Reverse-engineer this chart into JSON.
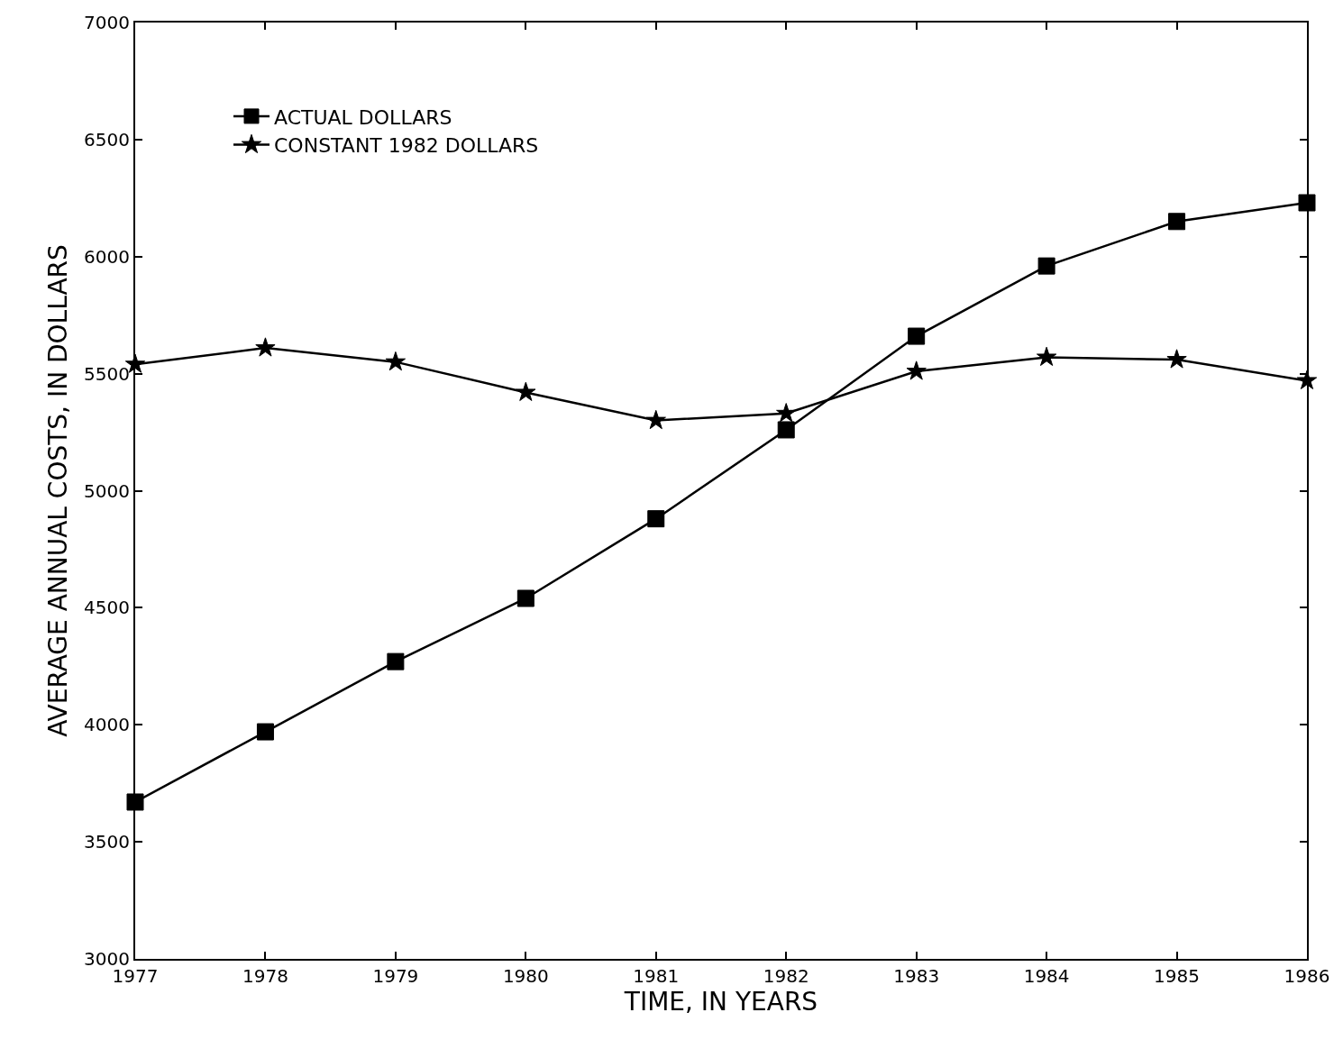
{
  "chart_data": {
    "type": "line",
    "xlabel": "TIME, IN YEARS",
    "ylabel": "AVERAGE ANNUAL COSTS, IN DOLLARS",
    "x": [
      1977,
      1978,
      1979,
      1980,
      1981,
      1982,
      1983,
      1984,
      1985,
      1986
    ],
    "series": [
      {
        "name": "ACTUAL DOLLARS",
        "color": "#000000",
        "marker": "square",
        "values": [
          3670,
          3970,
          4270,
          4540,
          4880,
          5260,
          5660,
          5960,
          6150,
          6230
        ]
      },
      {
        "name": "CONSTANT 1982 DOLLARS",
        "color": "#000000",
        "marker": "star",
        "values": [
          5540,
          5610,
          5550,
          5420,
          5300,
          5330,
          5510,
          5570,
          5560,
          5470
        ]
      }
    ],
    "xlim": [
      1977,
      1986
    ],
    "xticks": [
      1977,
      1978,
      1979,
      1980,
      1981,
      1982,
      1983,
      1984,
      1985,
      1986
    ],
    "ylim": [
      3000,
      7000
    ],
    "yticks": [
      3000,
      3500,
      4000,
      4500,
      5000,
      5500,
      6000,
      6500,
      7000
    ],
    "legend": "top left",
    "line_style": "solid"
  }
}
